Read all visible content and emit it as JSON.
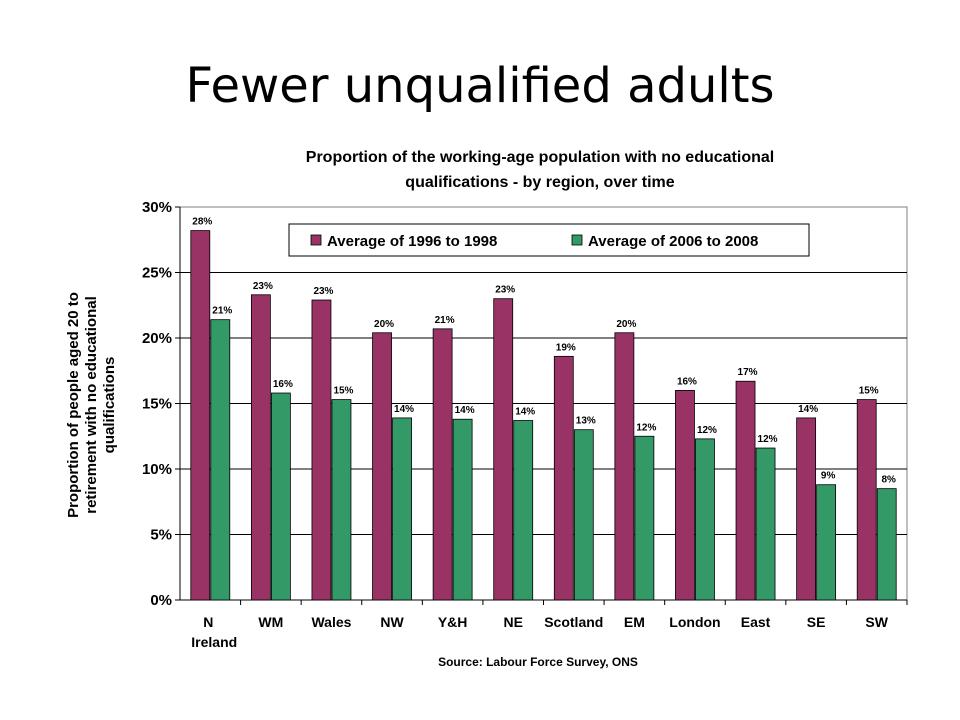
{
  "slide": {
    "title": "Fewer unqualified adults"
  },
  "chart_data": {
    "type": "bar",
    "title_lines": [
      "Proportion of the working-age population with no educational",
      "qualifications - by region, over time"
    ],
    "ylabel_lines": [
      "Proportion of people aged 20 to",
      "retirement with no educational",
      "qualifications"
    ],
    "xlabel": "",
    "source": "Source: Labour Force Survey, ONS",
    "categories": [
      "N Ireland",
      "WM",
      "Wales",
      "NW",
      "Y&H",
      "NE",
      "Scotland",
      "EM",
      "London",
      "East",
      "SE",
      "SW"
    ],
    "category_lines": [
      [
        "N",
        "Ireland"
      ],
      [
        "WM"
      ],
      [
        "Wales"
      ],
      [
        "NW"
      ],
      [
        "Y&H"
      ],
      [
        "NE"
      ],
      [
        "Scotland"
      ],
      [
        "EM"
      ],
      [
        "London"
      ],
      [
        "East"
      ],
      [
        "SE"
      ],
      [
        "SW"
      ]
    ],
    "series": [
      {
        "name": "Average of 1996 to 1998",
        "color": "#993366",
        "values": [
          28.2,
          23.3,
          22.9,
          20.4,
          20.7,
          23.0,
          18.6,
          20.4,
          16.0,
          16.7,
          13.9,
          15.3
        ],
        "labels": [
          "28%",
          "23%",
          "23%",
          "20%",
          "21%",
          "23%",
          "19%",
          "20%",
          "16%",
          "17%",
          "14%",
          "15%"
        ]
      },
      {
        "name": "Average of 2006 to 2008",
        "color": "#339966",
        "values": [
          21.4,
          15.8,
          15.3,
          13.9,
          13.8,
          13.7,
          13.0,
          12.5,
          12.3,
          11.6,
          8.8,
          8.5
        ],
        "labels": [
          "21%",
          "16%",
          "15%",
          "14%",
          "14%",
          "14%",
          "13%",
          "12%",
          "12%",
          "12%",
          "9%",
          "8%"
        ]
      }
    ],
    "ylim": [
      0,
      30
    ],
    "yticks": [
      0,
      5,
      10,
      15,
      20,
      25,
      30
    ],
    "ytick_labels": [
      "0%",
      "5%",
      "10%",
      "15%",
      "20%",
      "25%",
      "30%"
    ],
    "grid": true,
    "legend_position": "top"
  }
}
